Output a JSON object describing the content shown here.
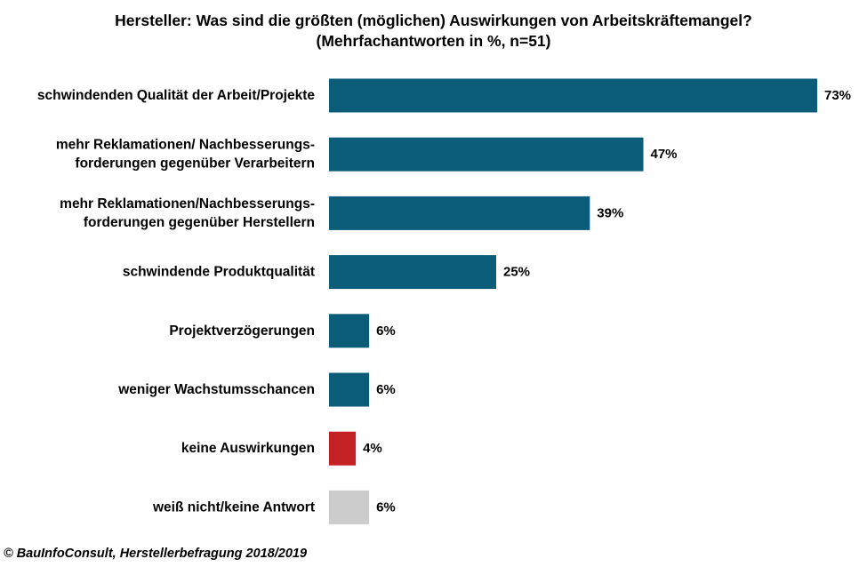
{
  "chart_data": {
    "type": "bar",
    "orientation": "horizontal",
    "title_line1": "Hersteller: Was sind die größten (möglichen) Auswirkungen von Arbeitskräftemangel?",
    "title_line2": "(Mehrfachantworten in %, n=51)",
    "xlim": [
      0,
      73
    ],
    "grid": false,
    "categories": [
      [
        "schwindenden Qualität der Arbeit/Projekte"
      ],
      [
        "mehr Reklamationen/ Nachbesserungs-",
        "forderungen gegenüber Verarbeitern"
      ],
      [
        "mehr Reklamationen/Nachbesserungs-",
        "forderungen gegenüber Herstellern"
      ],
      [
        "schwindende Produktqualität"
      ],
      [
        "Projektverzögerungen"
      ],
      [
        "weniger Wachstumsschancen"
      ],
      [
        "keine Auswirkungen"
      ],
      [
        "weiß nicht/keine Antwort"
      ]
    ],
    "values": [
      73,
      47,
      39,
      25,
      6,
      6,
      4,
      6
    ],
    "value_labels": [
      "73%",
      "47%",
      "39%",
      "25%",
      "6%",
      "6%",
      "4%",
      "6%"
    ],
    "colors": [
      "#0b5c78",
      "#0b5c78",
      "#0b5c78",
      "#0b5c78",
      "#0b5c78",
      "#0b5c78",
      "#c42124",
      "#cccccc"
    ]
  },
  "footer": {
    "source": "© BauInfoConsult, Herstellerbefragung 2018/2019"
  }
}
